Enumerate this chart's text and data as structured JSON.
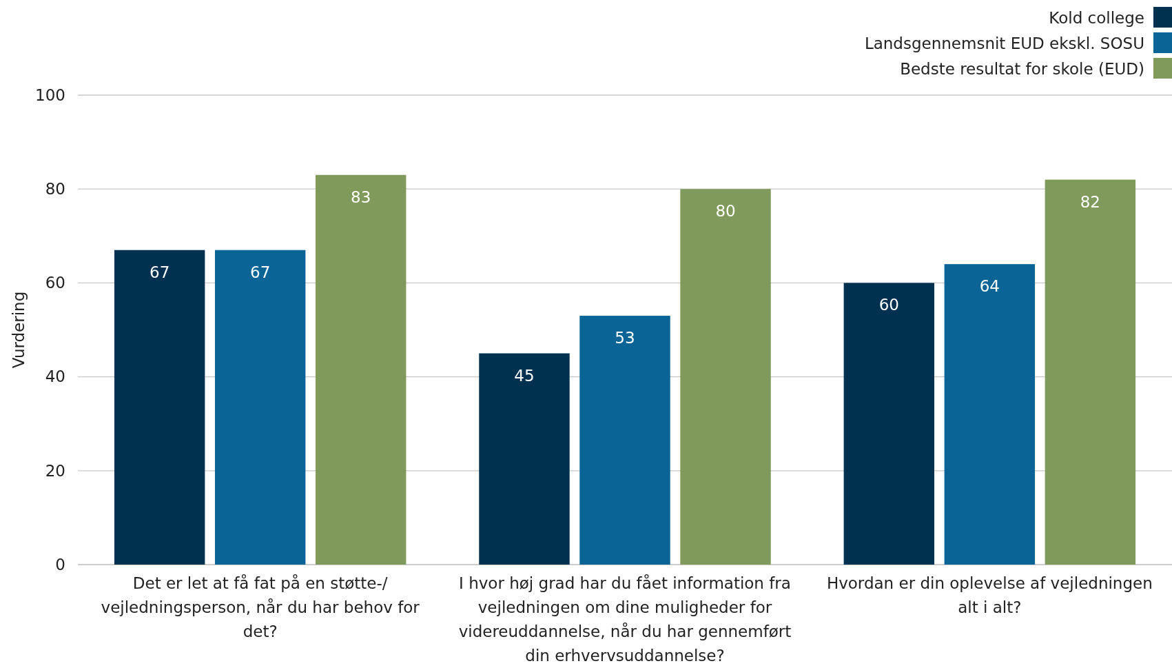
{
  "chart_data": {
    "type": "bar",
    "ylabel": "Vurdering",
    "categories": [
      "Det er let at få fat på en støtte-/vejledningsperson, når du har behov for det?",
      "I hvor høj grad har du fået information fra vejledningen om dine muligheder for videreuddannelse, når du har gennemført din erhvervsuddannelse?",
      "Hvordan er din oplevelse af vejledningen alt i alt?"
    ],
    "series": [
      {
        "name": "Kold college",
        "color": "#003151",
        "values": [
          67,
          45,
          60
        ]
      },
      {
        "name": "Landsgennemsnit EUD ekskl. SOSU",
        "color": "#0a6496",
        "values": [
          67,
          53,
          64
        ]
      },
      {
        "name": "Bedste resultat for skole (EUD)",
        "color": "#7f9a5a",
        "values": [
          83,
          80,
          82
        ]
      }
    ],
    "ylim": [
      0,
      100
    ],
    "yticks": [
      0,
      20,
      40,
      60,
      80,
      100
    ],
    "grid": "y",
    "legend": "top right",
    "data_labels": true
  }
}
